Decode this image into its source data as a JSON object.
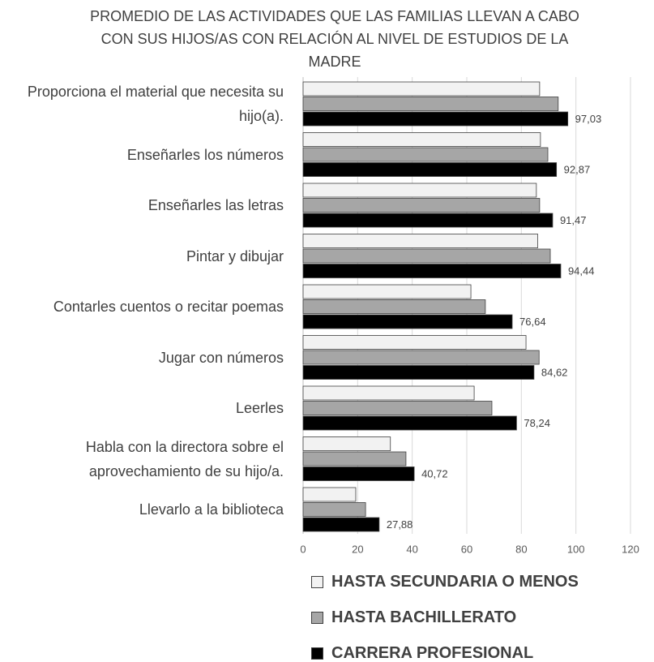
{
  "chart_data": {
    "type": "bar",
    "orientation": "horizontal",
    "title": "PROMEDIO DE LAS ACTIVIDADES QUE LAS FAMILIAS LLEVAN A CABO CON SUS HIJOS/AS CON RELACIÓN AL NIVEL DE ESTUDIOS DE LA MADRE",
    "categories": [
      "Proporciona el material que necesita su hijo(a).",
      "Enseñarles los números",
      "Enseñarles las letras",
      "Pintar y dibujar",
      "Contarles cuentos o recitar poemas",
      "Jugar con números",
      "Leerles",
      "Habla con la directora sobre el aprovechamiento de su hijo/a.",
      "Llevarlo a la biblioteca"
    ],
    "series": [
      {
        "name": "HASTA SECUNDARIA O MENOS",
        "color": "#f2f2f2",
        "values": [
          86.7,
          87,
          85.5,
          86,
          61.5,
          81.7,
          62.7,
          32,
          19.3
        ]
      },
      {
        "name": "HASTA BACHILLERATO",
        "color": "#a6a6a6",
        "values": [
          93.5,
          89.7,
          86.7,
          90.6,
          66.8,
          86.5,
          69.2,
          37.7,
          22.9
        ]
      },
      {
        "name": "CARRERA PROFESIONAL",
        "color": "#000000",
        "values": [
          97.03,
          92.87,
          91.47,
          94.44,
          76.64,
          84.62,
          78.24,
          40.72,
          27.88
        ],
        "value_labels": [
          "97,03",
          "92,87",
          "91,47",
          "94,44",
          "76,64",
          "84,62",
          "78,24",
          "40,72",
          "27,88"
        ]
      }
    ],
    "xlim": [
      0,
      120
    ],
    "xticks": [
      0,
      20,
      40,
      60,
      80,
      100,
      120
    ],
    "grid": true,
    "legend": "bottom"
  }
}
